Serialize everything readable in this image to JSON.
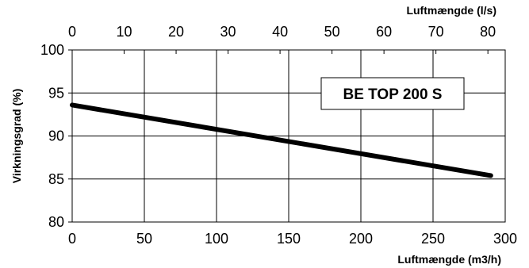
{
  "chart_data": {
    "type": "line",
    "title": "",
    "xlabel": "Luftmængde (m3/h)",
    "x2label": "Luftmængde (l/s)",
    "ylabel": "Virkningsgrad (%)",
    "xlim": [
      0,
      300
    ],
    "x2lim": [
      0,
      83.33
    ],
    "ylim": [
      80,
      100
    ],
    "xticks": [
      0,
      50,
      100,
      150,
      200,
      250,
      300
    ],
    "x2ticks": [
      0,
      10,
      20,
      30,
      40,
      50,
      60,
      70,
      80
    ],
    "yticks": [
      80,
      85,
      90,
      95,
      100
    ],
    "grid": true,
    "legend": "none",
    "annotation": "BE TOP 200 S",
    "series": [
      {
        "x": [
          0,
          290
        ],
        "y": [
          93.6,
          85.4
        ]
      }
    ],
    "colors": {
      "line": "#000000",
      "grid": "#000000",
      "background": "#ffffff"
    }
  }
}
